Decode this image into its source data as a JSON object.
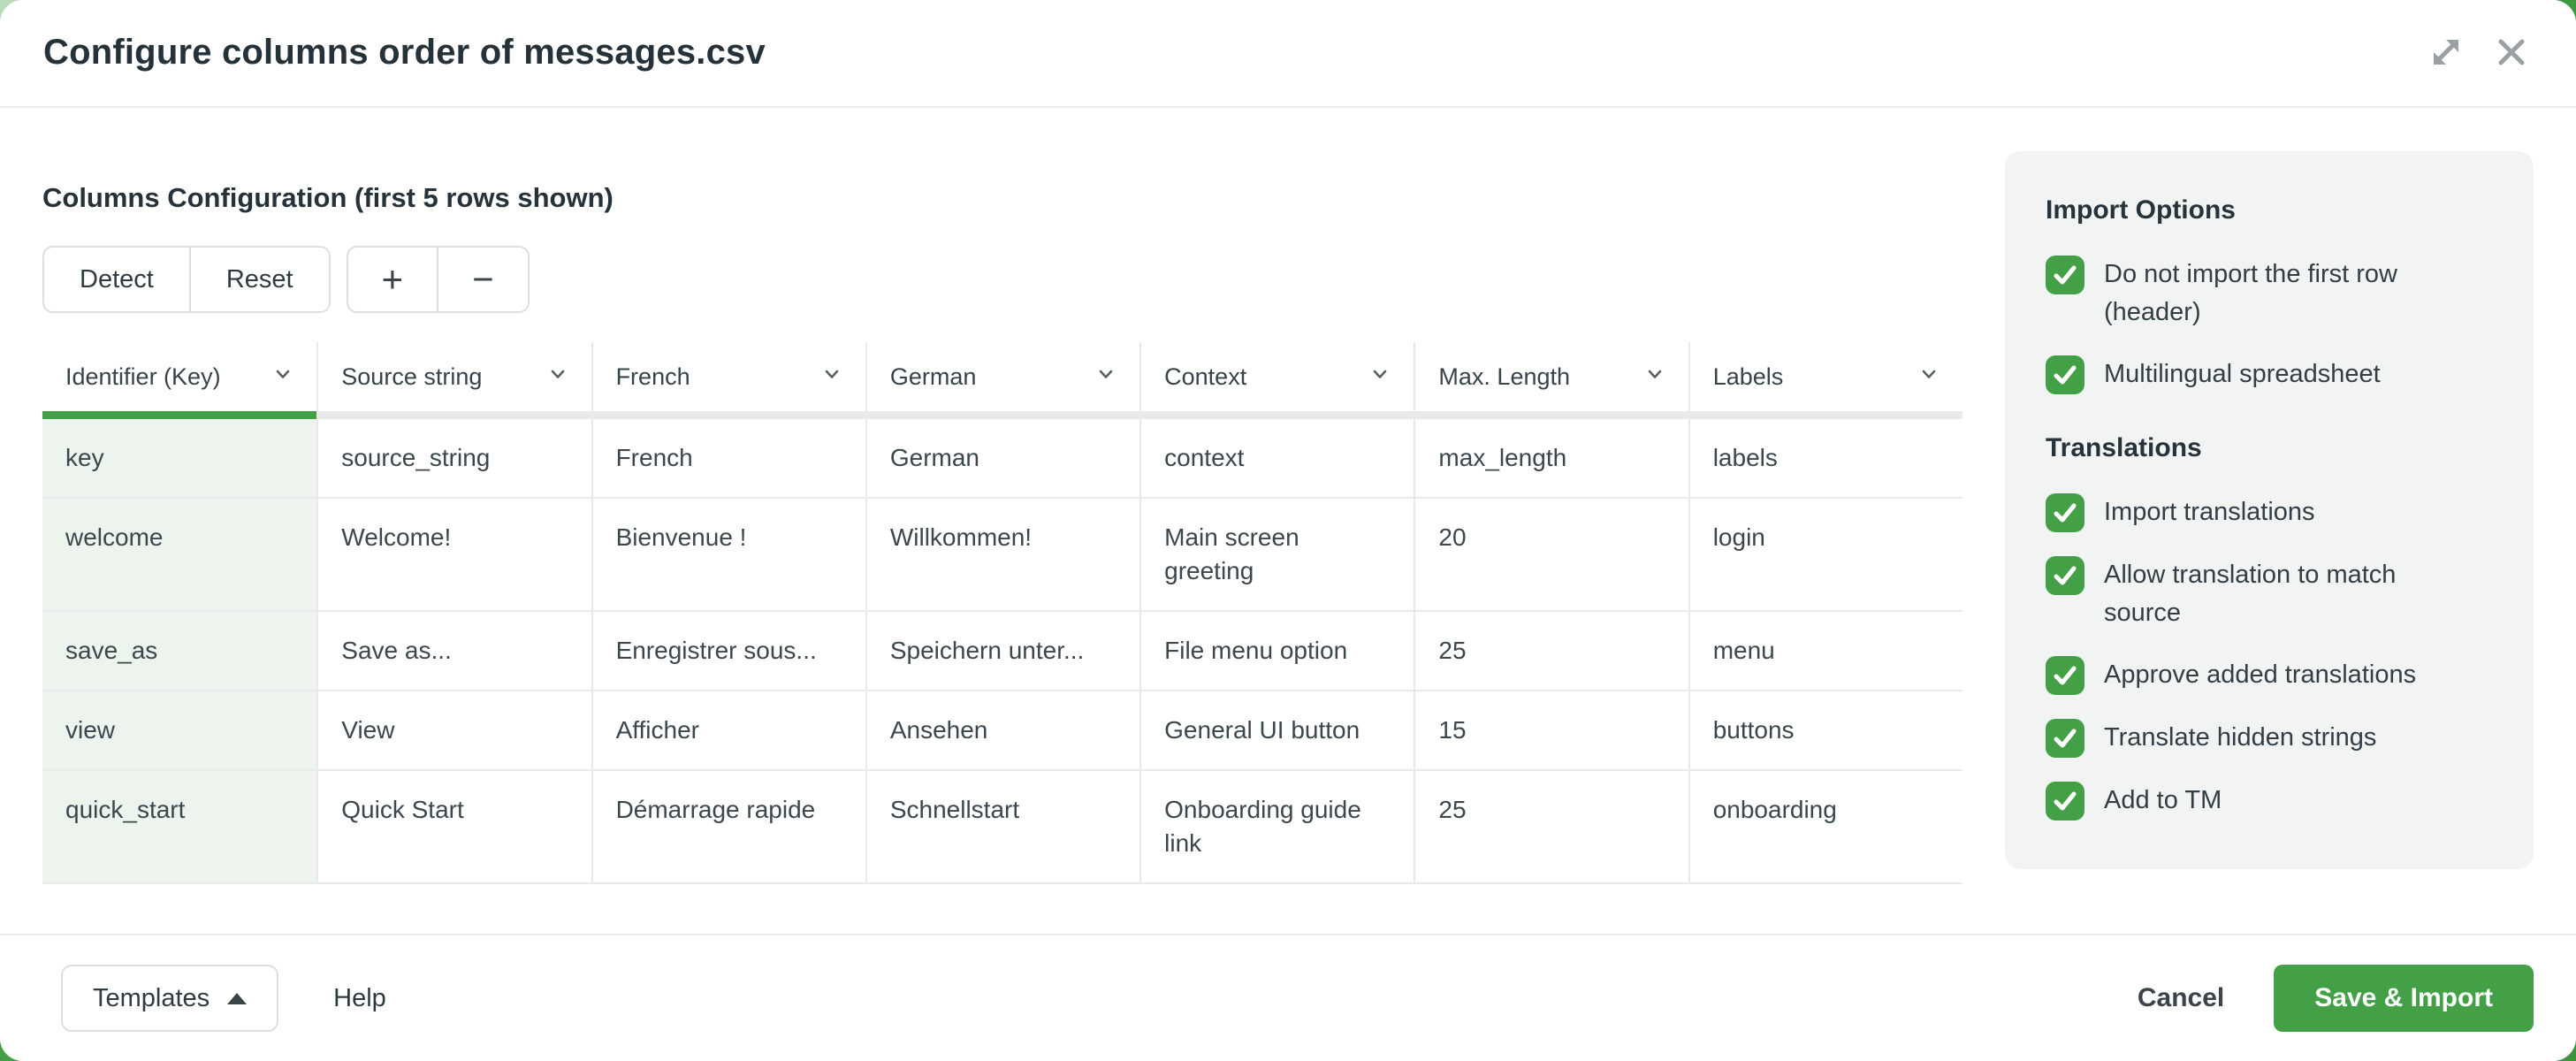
{
  "modal": {
    "title": "Configure columns order of messages.csv"
  },
  "toolbar": {
    "section_title": "Columns Configuration (first 5 rows shown)",
    "detect_label": "Detect",
    "reset_label": "Reset",
    "add_label": "+",
    "remove_label": "−"
  },
  "table": {
    "headers": [
      "Identifier (Key)",
      "Source string",
      "French",
      "German",
      "Context",
      "Max. Length",
      "Labels"
    ],
    "selected_column_index": 0,
    "rows": [
      [
        "key",
        "source_string",
        "French",
        "German",
        "context",
        "max_length",
        "labels"
      ],
      [
        "welcome",
        "Welcome!",
        "Bienvenue !",
        "Willkommen!",
        "Main screen greeting",
        "20",
        "login"
      ],
      [
        "save_as",
        "Save as...",
        "Enregistrer sous...",
        "Speichern unter...",
        "File menu option",
        "25",
        "menu"
      ],
      [
        "view",
        "View",
        "Afficher",
        "Ansehen",
        "General UI button",
        "15",
        "buttons"
      ],
      [
        "quick_start",
        "Quick Start",
        "Démarrage rapide",
        "Schnellstart",
        "Onboarding guide link",
        "25",
        "onboarding"
      ]
    ]
  },
  "side_panel": {
    "import_options_title": "Import Options",
    "import_options": [
      {
        "label": "Do not import the first row (header)",
        "checked": true
      },
      {
        "label": "Multilingual spreadsheet",
        "checked": true
      }
    ],
    "translations_title": "Translations",
    "translations": [
      {
        "label": "Import translations",
        "checked": true
      },
      {
        "label": "Allow translation to match source",
        "checked": true
      },
      {
        "label": "Approve added translations",
        "checked": true
      },
      {
        "label": "Translate hidden strings",
        "checked": true
      },
      {
        "label": "Add to TM",
        "checked": true
      }
    ]
  },
  "footer": {
    "templates_label": "Templates",
    "help_label": "Help",
    "cancel_label": "Cancel",
    "save_label": "Save & Import"
  },
  "icons": {
    "expand": "expand-icon",
    "close": "close-icon",
    "column_dropdown": "chevron-down-icon",
    "templates_caret": "caret-up-icon",
    "checkbox": "checkbox-checked-icon"
  },
  "colors": {
    "accent_green": "#43a047",
    "selected_column_bg": "#edf4ee",
    "inactive_indicator": "#e9e9e9",
    "panel_bg": "#f2f4f4",
    "text_dark": "#26323a",
    "background_green": "#43a047"
  }
}
